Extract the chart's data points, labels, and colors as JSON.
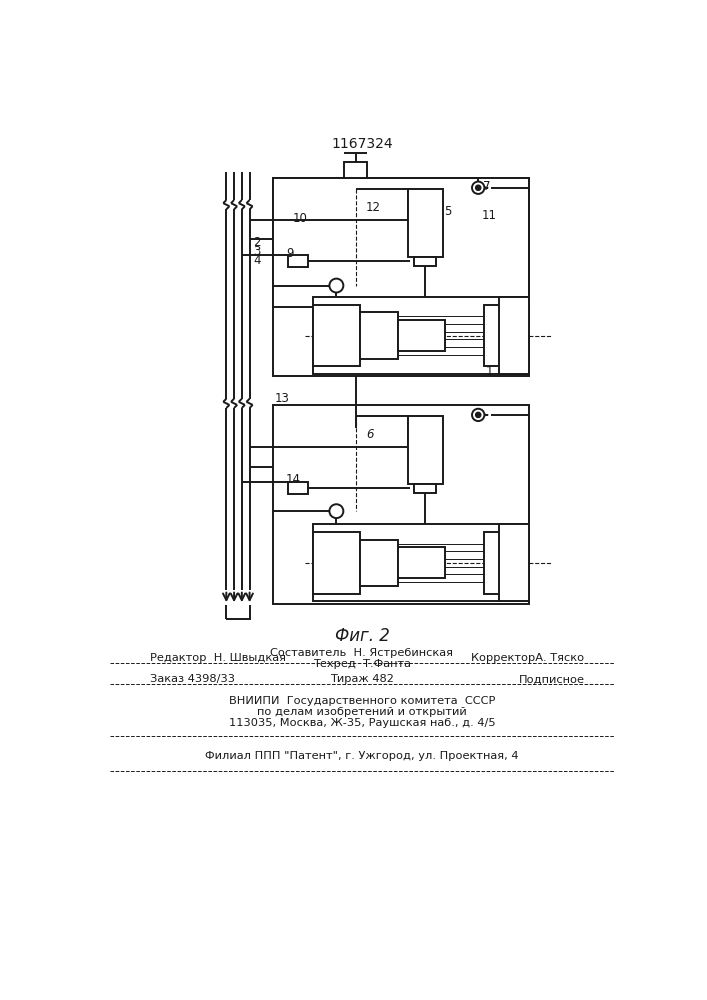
{
  "title": "1167324",
  "fig_label": "Фиг. 2",
  "bg_color": "#ffffff",
  "line_color": "#1a1a1a",
  "lw": 1.4,
  "footer": {
    "l1_left": "Редактор  Н. Швыдкая",
    "l1_center": "Составитель  Н. Ястребинская",
    "l1_right": "КорректорА. Тяско",
    "l2_center": "Техред  Т.Фанта",
    "l3_left": "Заказ 4398/33",
    "l3_center": "Тираж 482",
    "l3_right": "Подписное",
    "l4": "ВНИИПИ  Государственного комитета  СССР",
    "l5": "по делам изобретений и открытий",
    "l6": "113035, Москва, Ж-35, Раушская наб., д. 4/5",
    "l7": "Филиал ППП \"Патент\", г. Ужгород, ул. Проектная, 4"
  }
}
